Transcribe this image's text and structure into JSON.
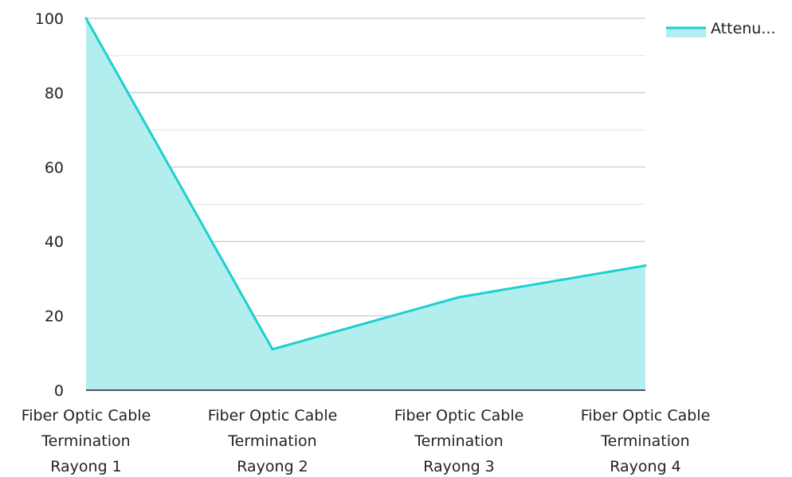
{
  "chart_data": {
    "type": "area",
    "categories": [
      [
        "Fiber Optic Cable",
        "Termination",
        "Rayong 1"
      ],
      [
        "Fiber Optic Cable",
        "Termination",
        "Rayong 2"
      ],
      [
        "Fiber Optic Cable",
        "Termination",
        "Rayong 3"
      ],
      [
        "Fiber Optic Cable",
        "Termination",
        "Rayong 4"
      ]
    ],
    "series": [
      {
        "name": "Attenu...",
        "values": [
          100,
          11,
          25,
          33.5
        ]
      }
    ],
    "ylim": [
      0,
      100
    ],
    "yticks": [
      "0",
      "20",
      "40",
      "60",
      "80",
      "100"
    ],
    "grid": true,
    "minor_grid": true,
    "legend": "top-right",
    "colors": {
      "line": "#1ecfcf",
      "fill": "#b2eeee",
      "grid": "#cccccc",
      "axis": "#222222"
    }
  }
}
